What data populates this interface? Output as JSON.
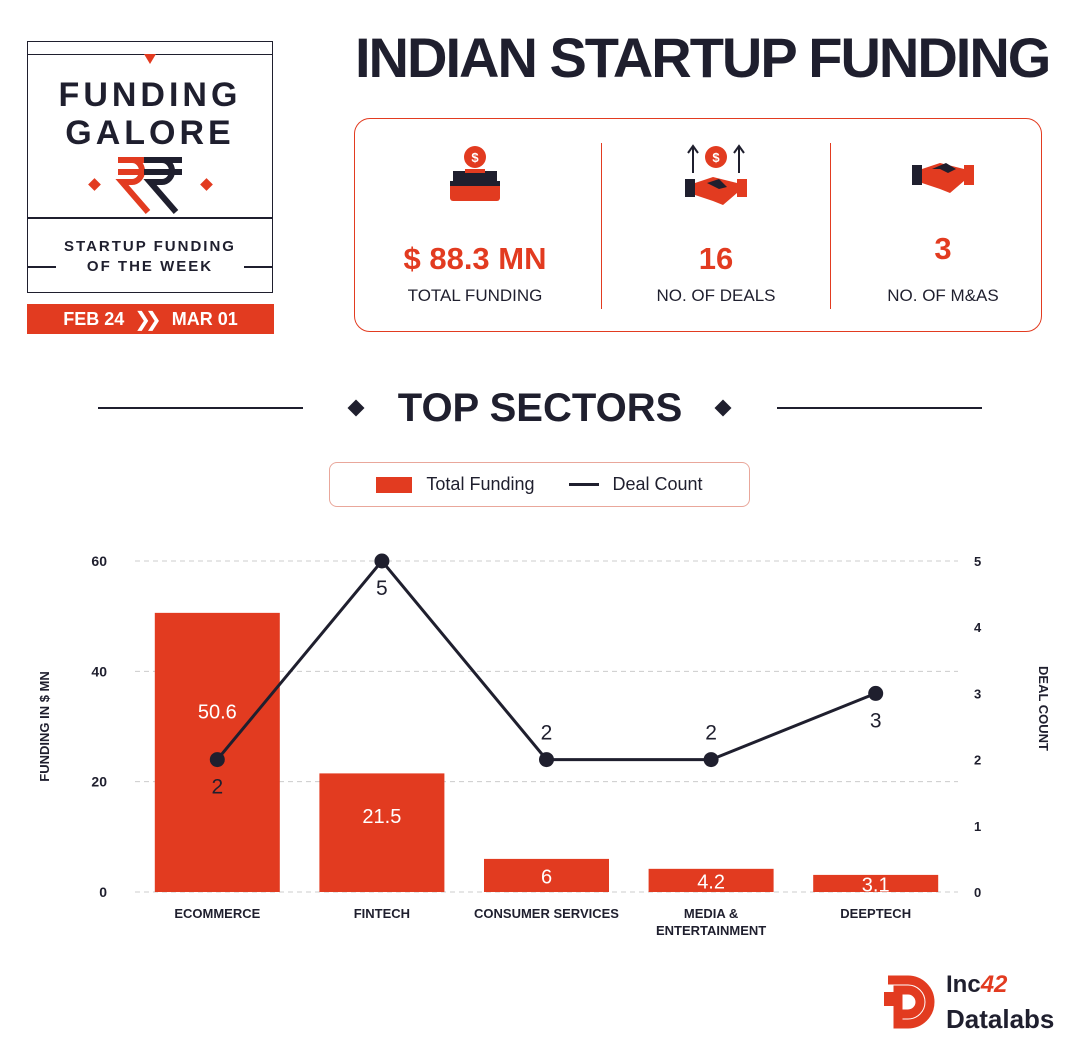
{
  "badge": {
    "title_line1": "FUNDING",
    "title_line2": "GALORE",
    "subtitle_line1": "STARTUP FUNDING",
    "subtitle_line2": "OF THE WEEK",
    "date_from": "FEB 24",
    "date_to": "MAR 01"
  },
  "header": {
    "title": "INDIAN STARTUP FUNDING"
  },
  "stats": [
    {
      "value": "$ 88.3 MN",
      "label": "TOTAL FUNDING",
      "icon": "money-box-icon"
    },
    {
      "value": "16",
      "label": "NO. OF DEALS",
      "icon": "deal-growth-icon"
    },
    {
      "value": "3",
      "label": "NO. OF M&AS",
      "icon": "handshake-icon"
    }
  ],
  "section": {
    "title": "TOP SECTORS"
  },
  "legend": {
    "bar_label": "Total Funding",
    "line_label": "Deal Count"
  },
  "logo": {
    "brand": "Inc",
    "brand_suffix": "42",
    "product": "Datalabs"
  },
  "colors": {
    "accent": "#e23b20",
    "dark": "#1f1f2e",
    "grid": "#cccccc"
  },
  "chart_data": {
    "type": "bar",
    "categories": [
      "ECOMMERCE",
      "FINTECH",
      "CONSUMER SERVICES",
      "MEDIA & ENTERTAINMENT",
      "DEEPTECH"
    ],
    "series": [
      {
        "name": "Total Funding",
        "type": "bar",
        "axis": "left",
        "values": [
          50.6,
          21.5,
          6,
          4.2,
          3.1
        ]
      },
      {
        "name": "Deal Count",
        "type": "line",
        "axis": "right",
        "values": [
          2,
          5,
          2,
          2,
          3
        ]
      }
    ],
    "ylabel": "FUNDING IN $ MN",
    "y2label": "DEAL COUNT",
    "ylim": [
      0,
      60
    ],
    "y2lim": [
      0,
      5
    ],
    "yticks": [
      0,
      20,
      40,
      60
    ],
    "y2ticks": [
      0,
      1,
      2,
      3,
      4,
      5
    ],
    "grid": true,
    "legend_position": "top-center"
  }
}
